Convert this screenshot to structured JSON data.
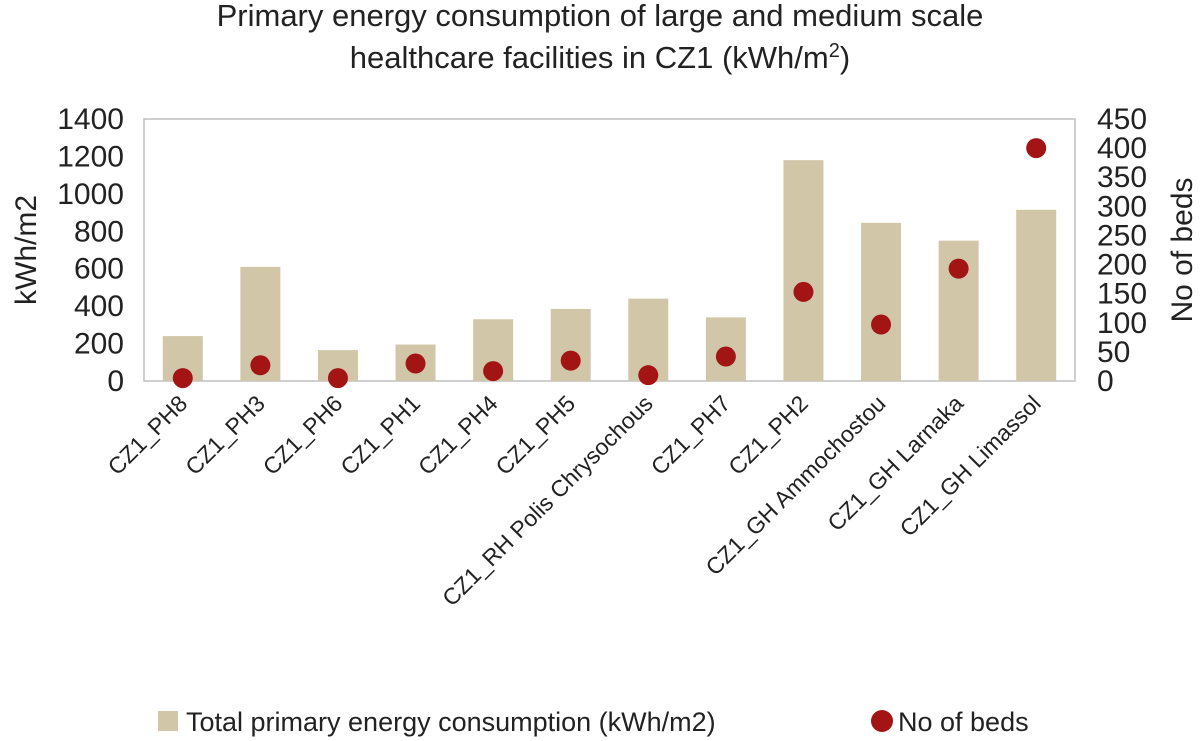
{
  "chart_data": {
    "type": "bar",
    "title_line1": "Primary energy consumption of large and medium scale",
    "title_line2_prefix": "healthcare facilities in CZ1 (kWh/m",
    "title_line2_sup": "2",
    "title_line2_suffix": ")",
    "categories": [
      "CZ1_PH8",
      "CZ1_PH3",
      "CZ1_PH6",
      "CZ1_PH1",
      "CZ1_PH4",
      "CZ1_PH5",
      "CZ1_RH Polis Chrysochous",
      "CZ1_PH7",
      "CZ1_PH2",
      "CZ1_GH Ammochostou",
      "CZ1_GH Larnaka",
      "CZ1_GH Limassol"
    ],
    "series": [
      {
        "name": "Total primary energy consumption (kWh/m2)",
        "type": "bar",
        "axis": "left",
        "color": "#d1c7a8",
        "values": [
          240,
          610,
          165,
          195,
          330,
          385,
          440,
          340,
          1180,
          845,
          750,
          915
        ]
      },
      {
        "name": "No of beds",
        "type": "scatter",
        "axis": "right",
        "color": "#a31515",
        "values": [
          5,
          27,
          5,
          30,
          17,
          35,
          10,
          42,
          153,
          97,
          193,
          400
        ]
      }
    ],
    "ylabel": "kWh/m2",
    "y2label": "No of beds",
    "ylim": [
      0,
      1400
    ],
    "y2lim": [
      0,
      450
    ],
    "yticks": [
      "0",
      "200",
      "400",
      "600",
      "800",
      "1000",
      "1200",
      "1400"
    ],
    "y2ticks": [
      "0",
      "50",
      "100",
      "150",
      "200",
      "250",
      "300",
      "350",
      "400",
      "450"
    ],
    "legend_position": "bottom"
  }
}
